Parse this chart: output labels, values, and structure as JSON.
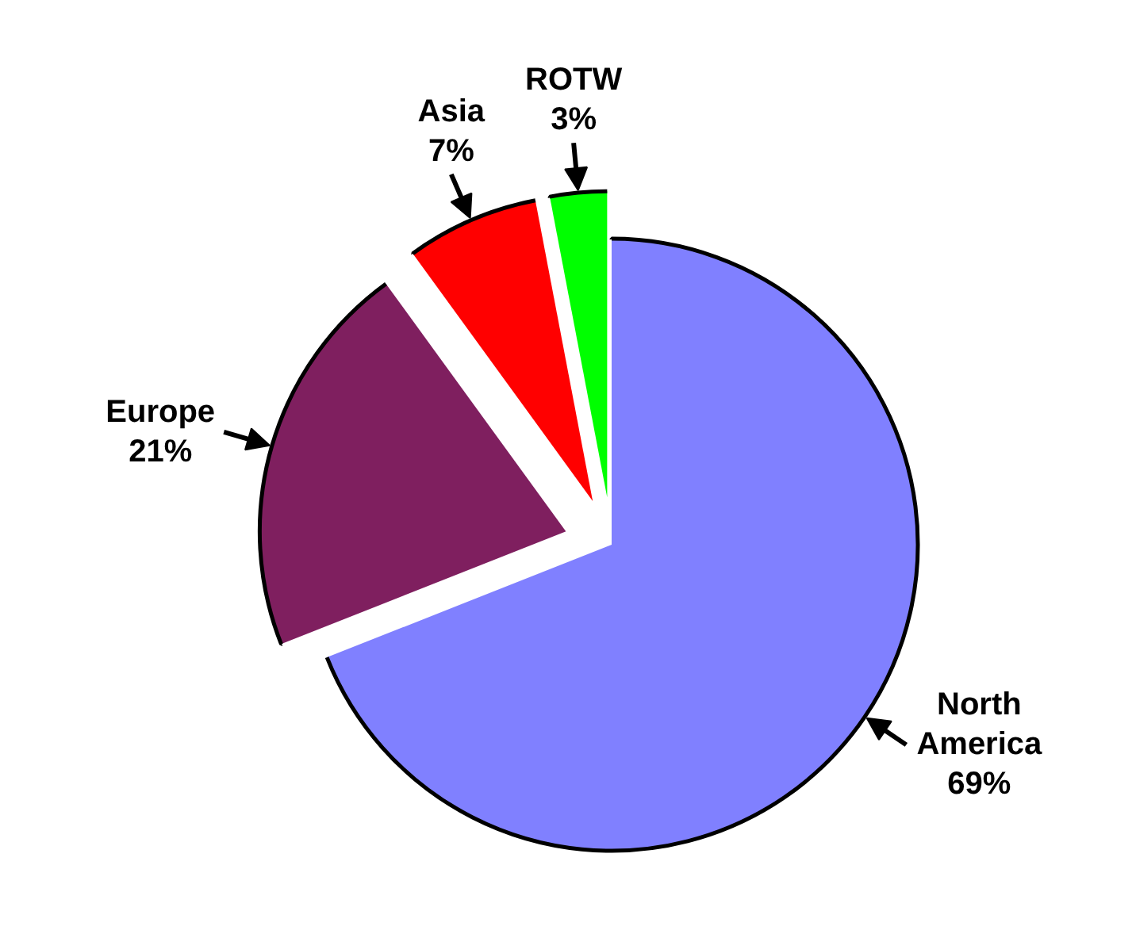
{
  "chart_data": {
    "type": "pie",
    "categories": [
      "North America",
      "Europe",
      "Asia",
      "ROTW"
    ],
    "values": [
      69,
      21,
      7,
      3
    ],
    "colors": [
      "#8080ff",
      "#7f1f5f",
      "#ff0000",
      "#00ff00"
    ],
    "value_labels": [
      "69%",
      "21%",
      "7%",
      "3%"
    ]
  }
}
